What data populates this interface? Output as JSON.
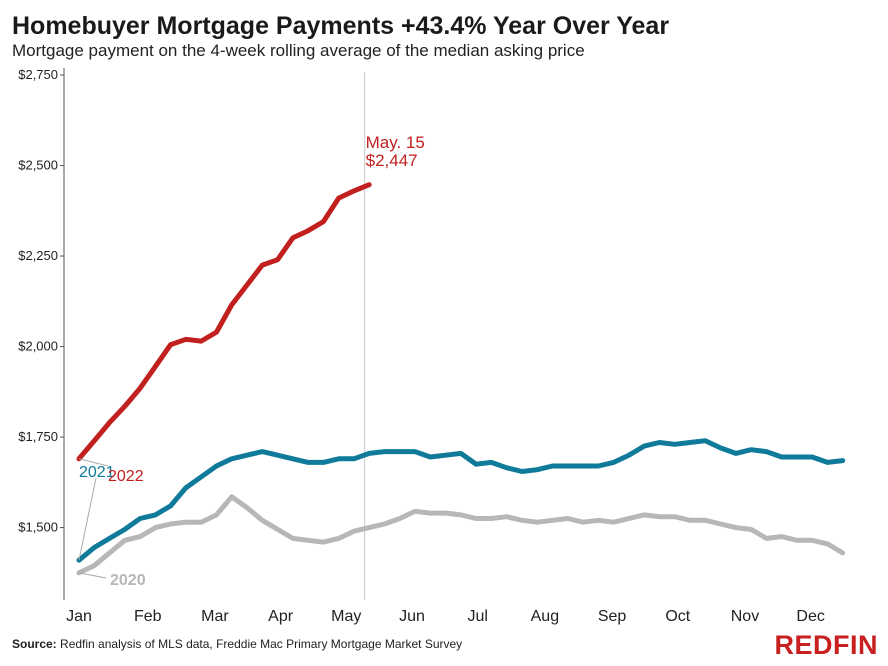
{
  "header": {
    "title": "Homebuyer Mortgage Payments +43.4% Year Over Year",
    "subtitle": "Mortgage payment on the 4-week rolling average of the median asking price"
  },
  "footer": {
    "source_label": "Source:",
    "source_text": " Redfin analysis of MLS data, Freddie Mac Primary Mortgage Market Survey",
    "logo": "REDFIN"
  },
  "colors": {
    "series_2022": "#c21f1f",
    "series_2021": "#0f7a99",
    "series_2020": "#b7b7b7",
    "axis": "#222222",
    "grid": "#dddddd"
  },
  "chart_data": {
    "type": "line",
    "title": "Homebuyer Mortgage Payments +43.4% Year Over Year",
    "subtitle": "Mortgage payment on the 4-week rolling average of the median asking price",
    "xlabel": "",
    "ylabel": "",
    "x_unit": "week of year",
    "x_range": [
      1,
      52
    ],
    "x_tick_labels": [
      "Jan",
      "Feb",
      "Mar",
      "Apr",
      "May",
      "Jun",
      "Jul",
      "Aug",
      "Sep",
      "Oct",
      "Nov",
      "Dec"
    ],
    "x_tick_positions": [
      1,
      5.5,
      9.9,
      14.2,
      18.5,
      22.8,
      27.1,
      31.5,
      35.9,
      40.2,
      44.6,
      48.9
    ],
    "ylim": [
      1300,
      2750
    ],
    "y_ticks": [
      1500,
      1750,
      2000,
      2250,
      2500,
      2750
    ],
    "y_tick_labels": [
      "$1,500",
      "$1,750",
      "$2,000",
      "$2,250",
      "$2,500",
      "$2,750"
    ],
    "reference_line_x": 19.7,
    "annotation": {
      "date": "May. 15",
      "value": "$2,447"
    },
    "series": [
      {
        "name": "2022",
        "color": "#c21f1f",
        "x": [
          1,
          2,
          3,
          4,
          5,
          6,
          7,
          8,
          9,
          10,
          11,
          12,
          13,
          14,
          15,
          16,
          17,
          18,
          19,
          20
        ],
        "values": [
          1690,
          1740,
          1790,
          1835,
          1885,
          1945,
          2005,
          2020,
          2015,
          2040,
          2115,
          2170,
          2225,
          2240,
          2300,
          2320,
          2345,
          2410,
          2430,
          2447
        ]
      },
      {
        "name": "2021",
        "color": "#0f7a99",
        "x": [
          1,
          2,
          3,
          4,
          5,
          6,
          7,
          8,
          9,
          10,
          11,
          12,
          13,
          14,
          15,
          16,
          17,
          18,
          19,
          20,
          21,
          22,
          23,
          24,
          25,
          26,
          27,
          28,
          29,
          30,
          31,
          32,
          33,
          34,
          35,
          36,
          37,
          38,
          39,
          40,
          41,
          42,
          43,
          44,
          45,
          46,
          47,
          48,
          49,
          50,
          51
        ],
        "values": [
          1410,
          1445,
          1470,
          1495,
          1525,
          1535,
          1560,
          1610,
          1640,
          1670,
          1690,
          1700,
          1710,
          1700,
          1690,
          1680,
          1680,
          1690,
          1690,
          1705,
          1710,
          1710,
          1710,
          1695,
          1700,
          1705,
          1675,
          1680,
          1665,
          1655,
          1660,
          1670,
          1670,
          1670,
          1670,
          1680,
          1700,
          1725,
          1735,
          1730,
          1735,
          1740,
          1720,
          1705,
          1715,
          1710,
          1695,
          1695,
          1695,
          1680,
          1685
        ]
      },
      {
        "name": "2020",
        "color": "#b7b7b7",
        "x": [
          1,
          2,
          3,
          4,
          5,
          6,
          7,
          8,
          9,
          10,
          11,
          12,
          13,
          14,
          15,
          16,
          17,
          18,
          19,
          20,
          21,
          22,
          23,
          24,
          25,
          26,
          27,
          28,
          29,
          30,
          31,
          32,
          33,
          34,
          35,
          36,
          37,
          38,
          39,
          40,
          41,
          42,
          43,
          44,
          45,
          46,
          47,
          48,
          49,
          50,
          51
        ],
        "values": [
          1375,
          1395,
          1430,
          1465,
          1475,
          1500,
          1510,
          1515,
          1515,
          1535,
          1585,
          1555,
          1520,
          1495,
          1470,
          1465,
          1460,
          1470,
          1490,
          1500,
          1510,
          1525,
          1545,
          1540,
          1540,
          1535,
          1525,
          1525,
          1530,
          1520,
          1515,
          1520,
          1525,
          1515,
          1520,
          1515,
          1525,
          1535,
          1530,
          1530,
          1520,
          1520,
          1510,
          1500,
          1495,
          1470,
          1475,
          1465,
          1465,
          1455,
          1430
        ]
      }
    ],
    "series_labels": [
      "2021",
      "2022",
      "2020"
    ],
    "grid": false,
    "legend": "inline labels"
  }
}
